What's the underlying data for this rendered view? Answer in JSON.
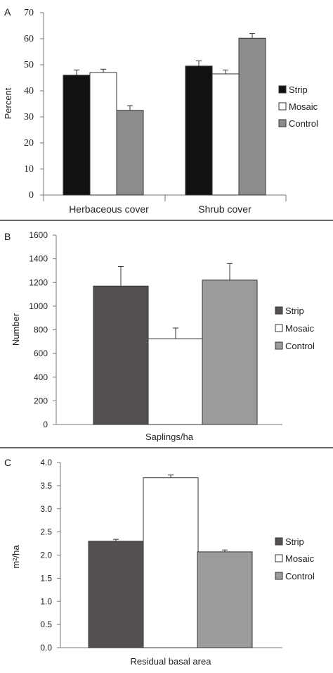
{
  "colors": {
    "A": {
      "Strip": "#111111",
      "Mosaic": "#ffffff",
      "Control": "#8c8c8c"
    },
    "B": {
      "Strip": "#555152",
      "Mosaic": "#ffffff",
      "Control": "#9b9b9b"
    },
    "C": {
      "Strip": "#555152",
      "Mosaic": "#ffffff",
      "Control": "#9b9b9b"
    }
  },
  "chart_data": [
    {
      "panel": "A",
      "type": "bar",
      "ylabel": "Percent",
      "ylim": [
        0,
        70
      ],
      "yticks": [
        "0",
        "10",
        "20",
        "30",
        "40",
        "50",
        "60",
        "70"
      ],
      "categories": [
        "Herbaceous cover",
        "Shrub cover"
      ],
      "series": [
        {
          "name": "Strip",
          "values": [
            46,
            49.5
          ],
          "errors": [
            2,
            2
          ]
        },
        {
          "name": "Mosaic",
          "values": [
            47,
            46.5
          ],
          "errors": [
            1.3,
            1.5
          ]
        },
        {
          "name": "Control",
          "values": [
            32.5,
            60.2
          ],
          "errors": [
            1.8,
            1.8
          ]
        }
      ],
      "legend": [
        "Strip",
        "Mosaic",
        "Control"
      ],
      "legend_position": "right"
    },
    {
      "panel": "B",
      "type": "bar",
      "ylabel": "Number",
      "ylim": [
        0,
        1600
      ],
      "yticks": [
        "0",
        "200",
        "400",
        "600",
        "800",
        "1000",
        "1200",
        "1400",
        "1600"
      ],
      "categories": [
        "Saplings/ha"
      ],
      "series": [
        {
          "name": "Strip",
          "values": [
            1170
          ],
          "errors": [
            165
          ]
        },
        {
          "name": "Mosaic",
          "values": [
            725
          ],
          "errors": [
            90
          ]
        },
        {
          "name": "Control",
          "values": [
            1220
          ],
          "errors": [
            140
          ]
        }
      ],
      "legend": [
        "Strip",
        "Mosaic",
        "Control"
      ],
      "legend_position": "right"
    },
    {
      "panel": "C",
      "type": "bar",
      "ylabel": "m²/ha",
      "ylim": [
        0,
        4
      ],
      "yticks": [
        "0.0",
        "0.5",
        "1.0",
        "1.5",
        "2.0",
        "2.5",
        "3.0",
        "3.5",
        "4.0"
      ],
      "categories": [
        "Residual basal area"
      ],
      "series": [
        {
          "name": "Strip",
          "values": [
            2.3
          ],
          "errors": [
            0.04
          ]
        },
        {
          "name": "Mosaic",
          "values": [
            3.67
          ],
          "errors": [
            0.06
          ]
        },
        {
          "name": "Control",
          "values": [
            2.07
          ],
          "errors": [
            0.04
          ]
        }
      ],
      "legend": [
        "Strip",
        "Mosaic",
        "Control"
      ],
      "legend_position": "right"
    }
  ]
}
